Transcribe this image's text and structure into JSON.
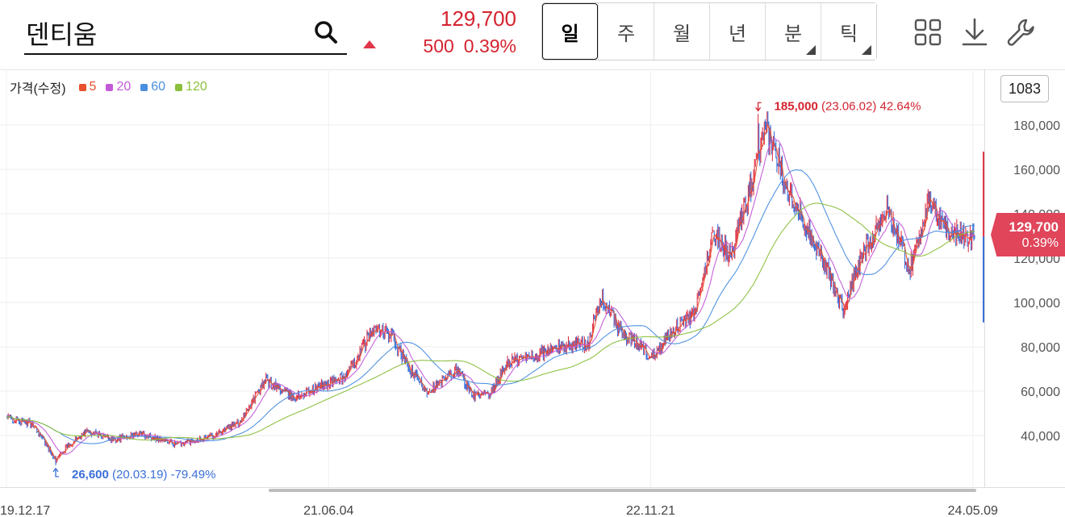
{
  "stock": {
    "name": "덴티움",
    "price": "129,700",
    "change": "500",
    "change_pct": "0.39%"
  },
  "periods": [
    {
      "label": "일",
      "active": true,
      "has_submenu": false
    },
    {
      "label": "주",
      "active": false,
      "has_submenu": false
    },
    {
      "label": "월",
      "active": false,
      "has_submenu": false
    },
    {
      "label": "년",
      "active": false,
      "has_submenu": false
    },
    {
      "label": "분",
      "active": false,
      "has_submenu": true
    },
    {
      "label": "틱",
      "active": false,
      "has_submenu": true
    }
  ],
  "tools": [
    "grid-icon",
    "download-icon",
    "wrench-icon"
  ],
  "legend": {
    "label": "가격(수정)",
    "items": [
      {
        "label": "5",
        "color": "#e8502e"
      },
      {
        "label": "20",
        "color": "#c25ad8"
      },
      {
        "label": "60",
        "color": "#4a8ee0"
      },
      {
        "label": "120",
        "color": "#8bbf3c"
      }
    ]
  },
  "count_box": "1083",
  "price_tag": {
    "price": "129,700",
    "pct": "0.39%"
  },
  "colors": {
    "up": "#e0364a",
    "down": "#3a6fd8",
    "price_tag": "#e0455a"
  },
  "chart_data": {
    "type": "line",
    "title": "",
    "ylabel": "",
    "ylim": [
      23000,
      194000
    ],
    "y_ticks": [
      "40,000",
      "60,000",
      "80,000",
      "100,000",
      "120,000",
      "140,000",
      "160,000",
      "180,000"
    ],
    "y_tick_values": [
      40000,
      60000,
      80000,
      100000,
      120000,
      140000,
      160000,
      180000
    ],
    "x_tick_labels": [
      "19.12.17",
      "21.06.04",
      "22.11.21",
      "24.05.09"
    ],
    "x_tick_index": [
      0,
      360,
      720,
      1080
    ],
    "bar_count": 1083,
    "annotations": {
      "high": {
        "value": "185,000",
        "detail": "(23.06.02) 42.64%",
        "index": 840,
        "price": 185000
      },
      "low": {
        "value": "26,600",
        "detail": "(20.03.19) -79.49%",
        "index": 55,
        "price": 26600
      }
    },
    "price_anchors": [
      [
        0,
        48000
      ],
      [
        30,
        45000
      ],
      [
        55,
        29000
      ],
      [
        70,
        36000
      ],
      [
        90,
        42000
      ],
      [
        120,
        38000
      ],
      [
        150,
        41000
      ],
      [
        190,
        36000
      ],
      [
        230,
        40000
      ],
      [
        260,
        46000
      ],
      [
        290,
        65000
      ],
      [
        320,
        57000
      ],
      [
        350,
        62000
      ],
      [
        380,
        67000
      ],
      [
        410,
        88000
      ],
      [
        430,
        85000
      ],
      [
        450,
        70000
      ],
      [
        470,
        60000
      ],
      [
        490,
        65000
      ],
      [
        505,
        70000
      ],
      [
        520,
        58000
      ],
      [
        540,
        58000
      ],
      [
        560,
        73000
      ],
      [
        590,
        76000
      ],
      [
        620,
        80000
      ],
      [
        650,
        82000
      ],
      [
        665,
        102000
      ],
      [
        690,
        85000
      ],
      [
        710,
        80000
      ],
      [
        720,
        75000
      ],
      [
        745,
        88000
      ],
      [
        770,
        95000
      ],
      [
        790,
        132000
      ],
      [
        810,
        120000
      ],
      [
        830,
        150000
      ],
      [
        850,
        178000
      ],
      [
        870,
        155000
      ],
      [
        890,
        138000
      ],
      [
        910,
        122000
      ],
      [
        935,
        97000
      ],
      [
        960,
        125000
      ],
      [
        985,
        142000
      ],
      [
        1010,
        115000
      ],
      [
        1030,
        145000
      ],
      [
        1055,
        131000
      ],
      [
        1082,
        129700
      ]
    ],
    "series": [
      {
        "name": "5",
        "window": 5,
        "color": "#e8502e"
      },
      {
        "name": "20",
        "window": 20,
        "color": "#c25ad8"
      },
      {
        "name": "60",
        "window": 60,
        "color": "#4a8ee0"
      },
      {
        "name": "120",
        "window": 120,
        "color": "#8bbf3c"
      }
    ],
    "last_range": {
      "high": 168000,
      "low": 91000
    },
    "grid": true
  }
}
